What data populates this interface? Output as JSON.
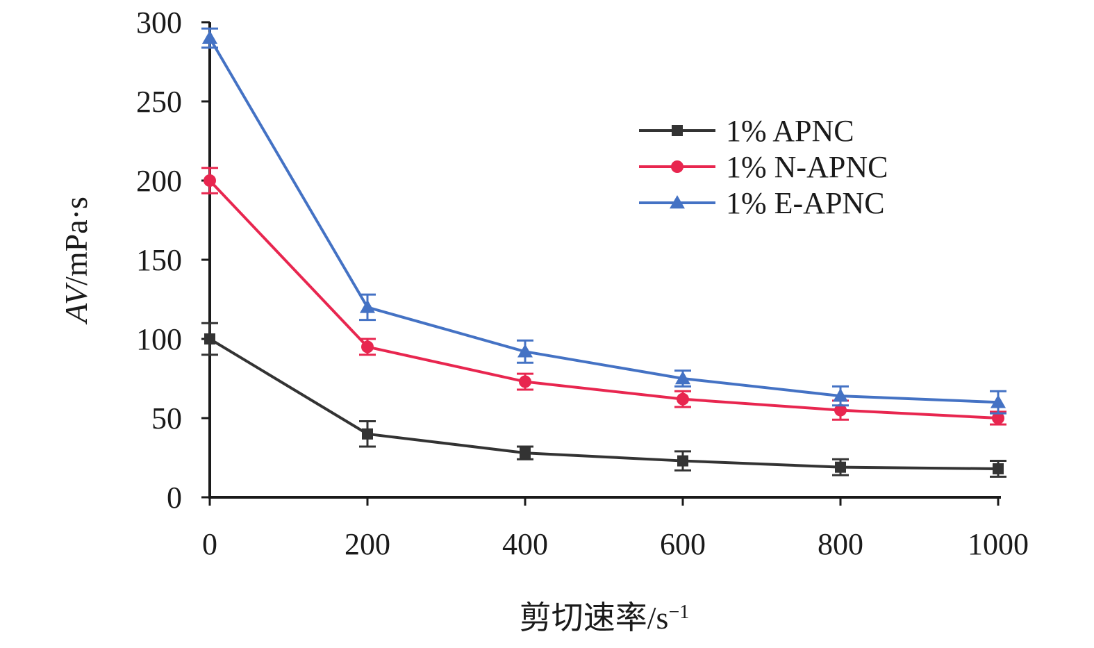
{
  "chart_data": {
    "type": "line",
    "title": "",
    "xlabel": "剪切速率/s",
    "xlabel_sup": "−1",
    "ylabel_italic": "AV",
    "ylabel_rest": "/mPa·s",
    "x": [
      0,
      200,
      400,
      600,
      800,
      1000
    ],
    "xlim": [
      0,
      1000
    ],
    "ylim": [
      0,
      300
    ],
    "xticks": [
      "0",
      "200",
      "400",
      "600",
      "800",
      "1000"
    ],
    "yticks": [
      "0",
      "50",
      "100",
      "150",
      "200",
      "250",
      "300"
    ],
    "grid": false,
    "legend_position": "top-right",
    "series": [
      {
        "name": "1% APNC",
        "color": "#333333",
        "marker": "square",
        "values": [
          100,
          40,
          28,
          23,
          19,
          18
        ],
        "errors": [
          10,
          8,
          4,
          6,
          5,
          5
        ]
      },
      {
        "name": "1% N-APNC",
        "color": "#e8264f",
        "marker": "circle",
        "values": [
          200,
          95,
          73,
          62,
          55,
          50
        ],
        "errors": [
          8,
          5,
          5,
          5,
          6,
          4
        ]
      },
      {
        "name": "1% E-APNC",
        "color": "#4472c4",
        "marker": "triangle",
        "values": [
          290,
          120,
          92,
          75,
          64,
          60
        ],
        "errors": [
          6,
          8,
          7,
          5,
          6,
          7
        ]
      }
    ]
  }
}
